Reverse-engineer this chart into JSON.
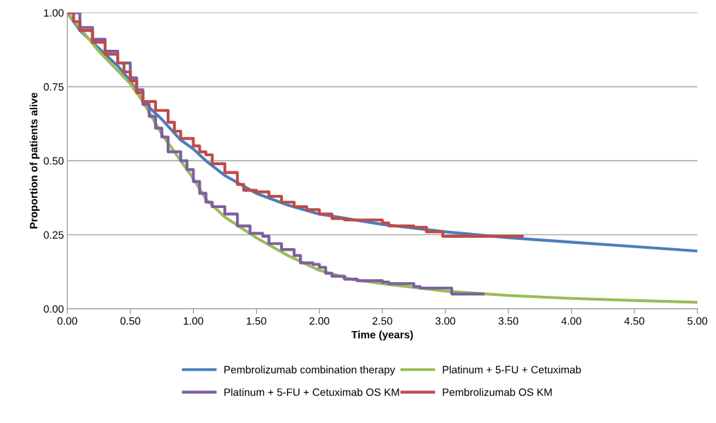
{
  "chart_data": {
    "type": "line",
    "xlabel": "Time (years)",
    "ylabel": "Proportion of patients alive",
    "xlim": [
      0,
      5
    ],
    "ylim": [
      0,
      1
    ],
    "xticks": [
      {
        "value": 0,
        "label": "0.00"
      },
      {
        "value": 0.5,
        "label": "0.50"
      },
      {
        "value": 1,
        "label": "1.00"
      },
      {
        "value": 1.5,
        "label": "1.50"
      },
      {
        "value": 2,
        "label": "2.00"
      },
      {
        "value": 2.5,
        "label": "2.50"
      },
      {
        "value": 3,
        "label": "3.00"
      },
      {
        "value": 3.5,
        "label": "3.50"
      },
      {
        "value": 4,
        "label": "4.00"
      },
      {
        "value": 4.5,
        "label": "4.50"
      },
      {
        "value": 5,
        "label": "5.00"
      }
    ],
    "yticks": [
      {
        "value": 0,
        "label": "0.00"
      },
      {
        "value": 0.25,
        "label": "0.25"
      },
      {
        "value": 0.5,
        "label": "0.50"
      },
      {
        "value": 0.75,
        "label": "0.75"
      },
      {
        "value": 1,
        "label": "1.00"
      }
    ],
    "grid": "y",
    "legend": "bottom",
    "marker": "none",
    "line_style": "solid",
    "series": [
      {
        "name": "Pembrolizumab combination therapy",
        "color": "#4a7ebb",
        "x": [
          0,
          0.1,
          0.25,
          0.4,
          0.5,
          0.6,
          0.75,
          0.9,
          1.0,
          1.1,
          1.25,
          1.5,
          1.75,
          2.0,
          2.5,
          3.0,
          3.5,
          4.0,
          4.5,
          5.0
        ],
        "values": [
          1.0,
          0.94,
          0.88,
          0.82,
          0.77,
          0.7,
          0.64,
          0.57,
          0.54,
          0.5,
          0.45,
          0.39,
          0.35,
          0.32,
          0.285,
          0.26,
          0.24,
          0.225,
          0.21,
          0.195
        ]
      },
      {
        "name": "Platinum + 5-FU + Cetuximab",
        "color": "#9bbb59",
        "x": [
          0,
          0.25,
          0.5,
          0.6,
          0.75,
          0.9,
          1.0,
          1.1,
          1.25,
          1.5,
          1.75,
          2.0,
          2.25,
          2.5,
          3.0,
          3.5,
          4.0,
          4.5,
          5.0
        ],
        "values": [
          1.0,
          0.87,
          0.76,
          0.7,
          0.59,
          0.5,
          0.44,
          0.37,
          0.31,
          0.24,
          0.18,
          0.13,
          0.1,
          0.085,
          0.06,
          0.045,
          0.035,
          0.028,
          0.022
        ]
      },
      {
        "name": "Platinum + 5-FU + Cetuximab OS KM",
        "color": "#7d60a0",
        "type": "step",
        "x": [
          0,
          0.1,
          0.2,
          0.3,
          0.4,
          0.5,
          0.55,
          0.6,
          0.65,
          0.7,
          0.75,
          0.8,
          0.9,
          0.95,
          1.0,
          1.05,
          1.1,
          1.15,
          1.25,
          1.35,
          1.45,
          1.55,
          1.6,
          1.7,
          1.8,
          1.85,
          1.95,
          2.0,
          2.05,
          2.1,
          2.2,
          2.3,
          2.5,
          2.55,
          2.75,
          2.8,
          3.05,
          3.3
        ],
        "values": [
          1.0,
          0.95,
          0.91,
          0.87,
          0.83,
          0.78,
          0.74,
          0.69,
          0.65,
          0.61,
          0.58,
          0.53,
          0.5,
          0.47,
          0.43,
          0.39,
          0.36,
          0.345,
          0.32,
          0.28,
          0.255,
          0.245,
          0.22,
          0.2,
          0.18,
          0.155,
          0.15,
          0.14,
          0.12,
          0.11,
          0.1,
          0.095,
          0.09,
          0.085,
          0.075,
          0.07,
          0.05,
          0.05
        ]
      },
      {
        "name": "Pembrolizumab OS KM",
        "color": "#be4b48",
        "type": "step",
        "x": [
          0,
          0.05,
          0.1,
          0.2,
          0.3,
          0.4,
          0.45,
          0.5,
          0.55,
          0.6,
          0.7,
          0.8,
          0.85,
          0.9,
          1.0,
          1.05,
          1.1,
          1.15,
          1.25,
          1.35,
          1.4,
          1.5,
          1.6,
          1.7,
          1.8,
          1.9,
          2.0,
          2.1,
          2.2,
          2.5,
          2.55,
          2.75,
          2.85,
          2.98,
          3.61
        ],
        "values": [
          1.0,
          0.97,
          0.94,
          0.9,
          0.86,
          0.83,
          0.8,
          0.77,
          0.73,
          0.7,
          0.67,
          0.63,
          0.6,
          0.575,
          0.55,
          0.53,
          0.52,
          0.49,
          0.46,
          0.42,
          0.4,
          0.395,
          0.38,
          0.36,
          0.345,
          0.335,
          0.32,
          0.305,
          0.3,
          0.29,
          0.28,
          0.275,
          0.26,
          0.245,
          0.245
        ]
      }
    ]
  }
}
